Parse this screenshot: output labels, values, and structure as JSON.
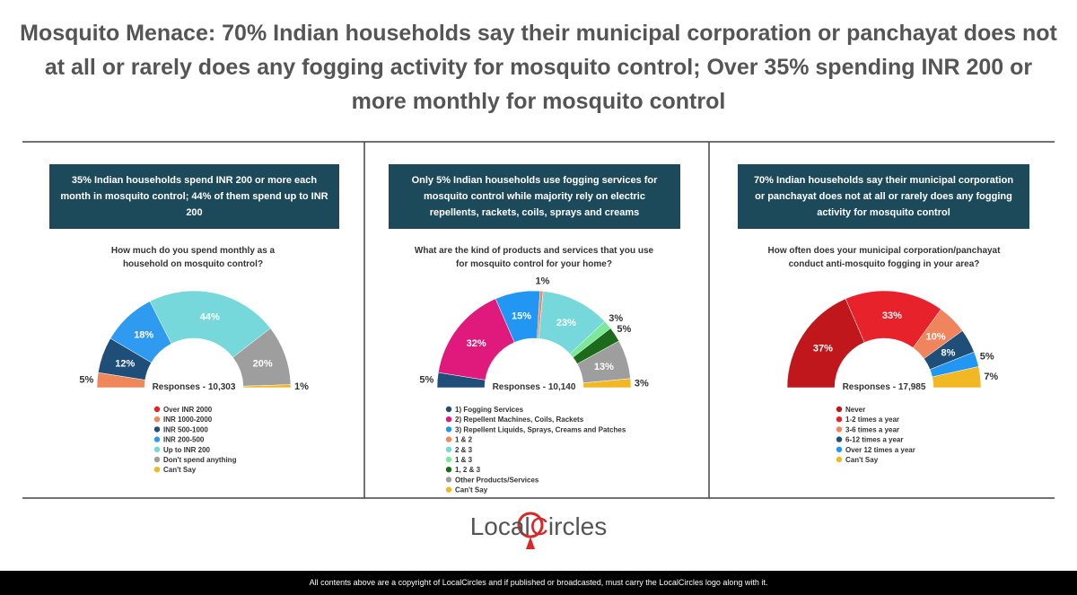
{
  "header": {
    "title": "Mosquito Menace: 70% Indian households say their municipal corporation or panchayat does not at all or rarely does any fogging activity for mosquito control; Over 35% spending INR 200 or more monthly for mosquito control"
  },
  "chart_data": [
    {
      "type": "pie",
      "headline": "35% Indian households spend INR 200 or more each month in mosquito control; 44% of them spend up to INR 200",
      "title": "How much do you spend monthly as a household on mosquito control?",
      "annotation": "Responses - 10,303",
      "categories": [
        "Over INR 2000",
        "INR 1000-2000",
        "INR 500-1000",
        "INR 200-500",
        "Up to INR 200",
        "Don't spend anything",
        "Can't Say"
      ],
      "values": [
        0,
        5,
        12,
        18,
        44,
        20,
        1
      ],
      "value_labels": [
        null,
        "5%",
        "12%",
        "18%",
        "44%",
        "20%",
        "1%"
      ],
      "colors": [
        "#e02424",
        "#f0875a",
        "#1f4e79",
        "#2f9bf0",
        "#76d8db",
        "#9e9e9e",
        "#f2b824"
      ]
    },
    {
      "type": "pie",
      "headline": "Only 5% Indian households use fogging services for mosquito control while majority rely on electric repellents, rackets, coils, sprays and creams",
      "title": "What are the kind of products and services that you use for mosquito control for your home?",
      "annotation": "Responses - 10,140",
      "categories": [
        "1) Fogging Services",
        "2) Repellent Machines, Coils, Rackets",
        "3) Repellent Liquids, Sprays, Creams and Patches",
        "1 & 2",
        "2 & 3",
        "1 & 3",
        "1, 2 & 3",
        "Other Products/Services",
        "Can't Say"
      ],
      "values": [
        5,
        32,
        15,
        1,
        23,
        3,
        5,
        13,
        3
      ],
      "value_labels": [
        "5%",
        "32%",
        "15%",
        "1%",
        "23%",
        "3%",
        "5%",
        "13%",
        "3%"
      ],
      "colors": [
        "#1f4e79",
        "#e0197d",
        "#2196f3",
        "#f0875a",
        "#76d8db",
        "#7ee89a",
        "#1b6b1b",
        "#9e9e9e",
        "#f2b824"
      ]
    },
    {
      "type": "pie",
      "headline": "70% Indian households say their municipal corporation or panchayat does not at all or rarely does any fogging activity for mosquito control",
      "title": "How often does your municipal corporation/panchayat conduct anti-mosquito fogging in your area?",
      "annotation": "Responses - 17,985",
      "categories": [
        "Never",
        "1-2 times a year",
        "3-6 times a year",
        "6-12 times a year",
        "Over 12 times a year",
        "Can't Say"
      ],
      "values": [
        37,
        33,
        10,
        8,
        5,
        7
      ],
      "value_labels": [
        "37%",
        "33%",
        "10%",
        "8%",
        "5%",
        "7%"
      ],
      "colors": [
        "#c0171c",
        "#e8222a",
        "#f0845c",
        "#1f4e79",
        "#2196f3",
        "#f2b824"
      ]
    }
  ],
  "logo": [
    "Local",
    "C",
    "ircles"
  ],
  "footer": "All contents above are a copyright of LocalCircles and if published or broadcasted, must carry the LocalCircles logo along with it."
}
